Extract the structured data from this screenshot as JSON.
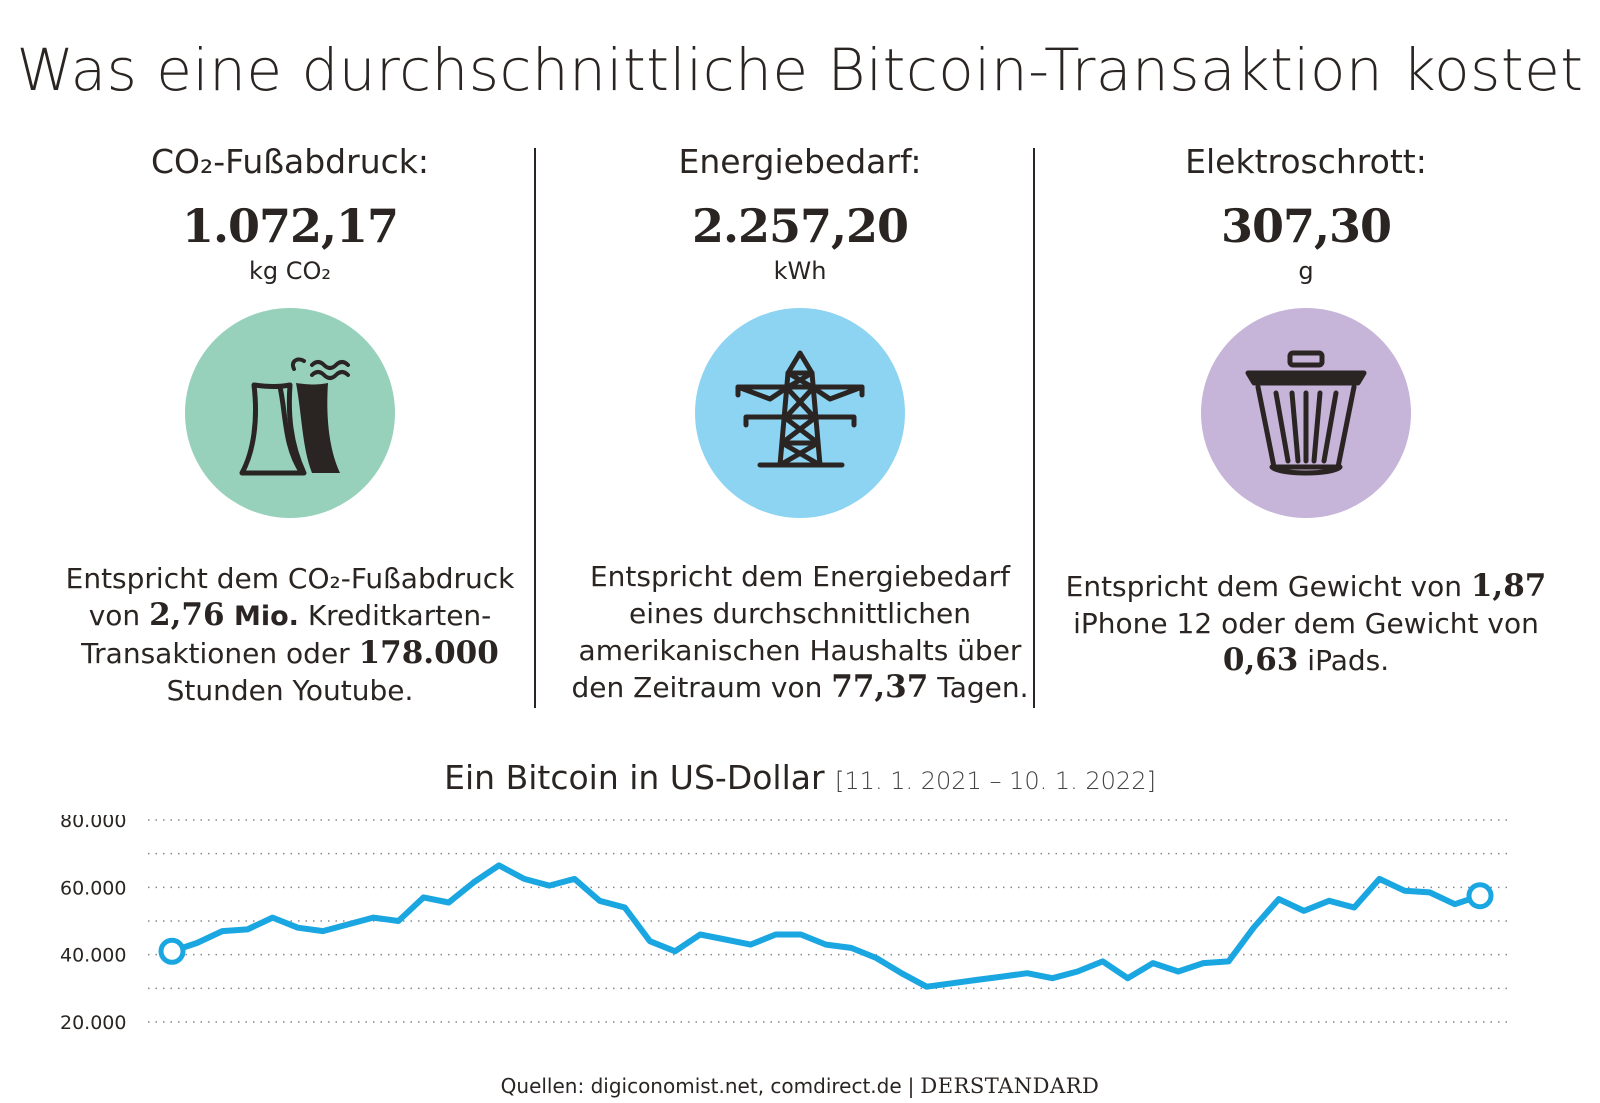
{
  "title": "Was eine durchschnittliche Bitcoin-Transaktion kostet",
  "columns": [
    {
      "heading": "CO₂-Fußabdruck:",
      "value": "1.072,17",
      "unit": "kg CO₂",
      "icon": "power-plant-icon",
      "circle_color": "#97d1bc",
      "text_parts": [
        "Entspricht dem CO₂-Fußabdruck von ",
        "2,76",
        " Mio.",
        " Kreditkarten-Transaktionen oder ",
        "178.000",
        " Stunden Youtube."
      ]
    },
    {
      "heading": "Energiebedarf:",
      "value": "2.257,20",
      "unit": "kWh",
      "icon": "power-pylon-icon",
      "circle_color": "#8dd4f3",
      "text_parts": [
        "Entspricht dem Energiebedarf eines durchschnittlichen amerikanischen Haushalts über den Zeitraum von ",
        "77,37",
        " Tagen."
      ]
    },
    {
      "heading": "Elektroschrott:",
      "value": "307,30",
      "unit": "g",
      "icon": "trash-can-icon",
      "circle_color": "#c6b4d9",
      "text_parts": [
        "Entspricht dem Gewicht von ",
        "1,87",
        " iPhone 12 oder dem Gewicht von ",
        "0,63",
        " iPads."
      ]
    }
  ],
  "chart_title": "Ein Bitcoin in US-Dollar",
  "chart_range": "[11. 1. 2021 – 10. 1. 2022]",
  "source_label": "Quellen: digiconomist.net, comdirect.de",
  "source_separator": "|",
  "brand": "DERSTANDARD",
  "colors": {
    "line": "#1aa6e0",
    "text": "#2a2522",
    "grid": "#888888"
  },
  "chart_data": {
    "type": "line",
    "title": "Ein Bitcoin in US-Dollar",
    "xlabel": "",
    "ylabel": "",
    "x_range": [
      "2021-01-11",
      "2022-01-10"
    ],
    "ylim": [
      20000,
      80000
    ],
    "y_ticks": [
      20000,
      40000,
      60000,
      80000
    ],
    "y_tick_labels": [
      "20.000",
      "40.000",
      "60.000",
      "80.000"
    ],
    "grid": true,
    "grid_step": 10000,
    "series": [
      {
        "x": [
          "2021-01-11",
          "2021-01-18",
          "2021-01-25",
          "2021-02-01",
          "2021-02-08",
          "2021-02-15",
          "2021-02-22",
          "2021-03-01",
          "2021-03-08",
          "2021-03-15",
          "2021-03-22",
          "2021-03-29",
          "2021-04-05",
          "2021-04-12",
          "2021-04-19",
          "2021-04-26",
          "2021-05-03",
          "2021-05-10",
          "2021-05-17",
          "2021-05-24",
          "2021-05-31",
          "2021-06-07",
          "2021-06-14",
          "2021-06-21",
          "2021-06-28",
          "2021-07-05",
          "2021-07-12",
          "2021-07-19",
          "2021-07-26",
          "2021-08-02",
          "2021-08-09",
          "2021-08-16",
          "2021-08-23",
          "2021-08-30",
          "2021-09-06",
          "2021-09-13",
          "2021-09-20",
          "2021-09-27",
          "2021-10-04",
          "2021-10-11",
          "2021-10-18",
          "2021-10-25",
          "2021-11-01",
          "2021-11-08",
          "2021-11-15",
          "2021-11-22",
          "2021-11-29",
          "2021-12-06",
          "2021-12-13",
          "2021-12-20",
          "2021-12-27",
          "2022-01-03",
          "2022-01-10"
        ],
        "values": [
          41000,
          43500,
          47000,
          47500,
          51000,
          48000,
          47000,
          49000,
          51000,
          50000,
          57000,
          55500,
          61500,
          66500,
          62500,
          60500,
          62500,
          56000,
          54000,
          44000,
          41000,
          46000,
          44500,
          43000,
          46000,
          46000,
          43000,
          42000,
          39000,
          34500,
          30500,
          31500,
          32500,
          33500,
          34500,
          33000,
          35000,
          38000,
          33000,
          37500,
          35000,
          37500,
          38000,
          48000,
          56500,
          53000,
          56000,
          54000,
          62500,
          59000,
          58500,
          55000,
          57500
        ]
      }
    ]
  }
}
